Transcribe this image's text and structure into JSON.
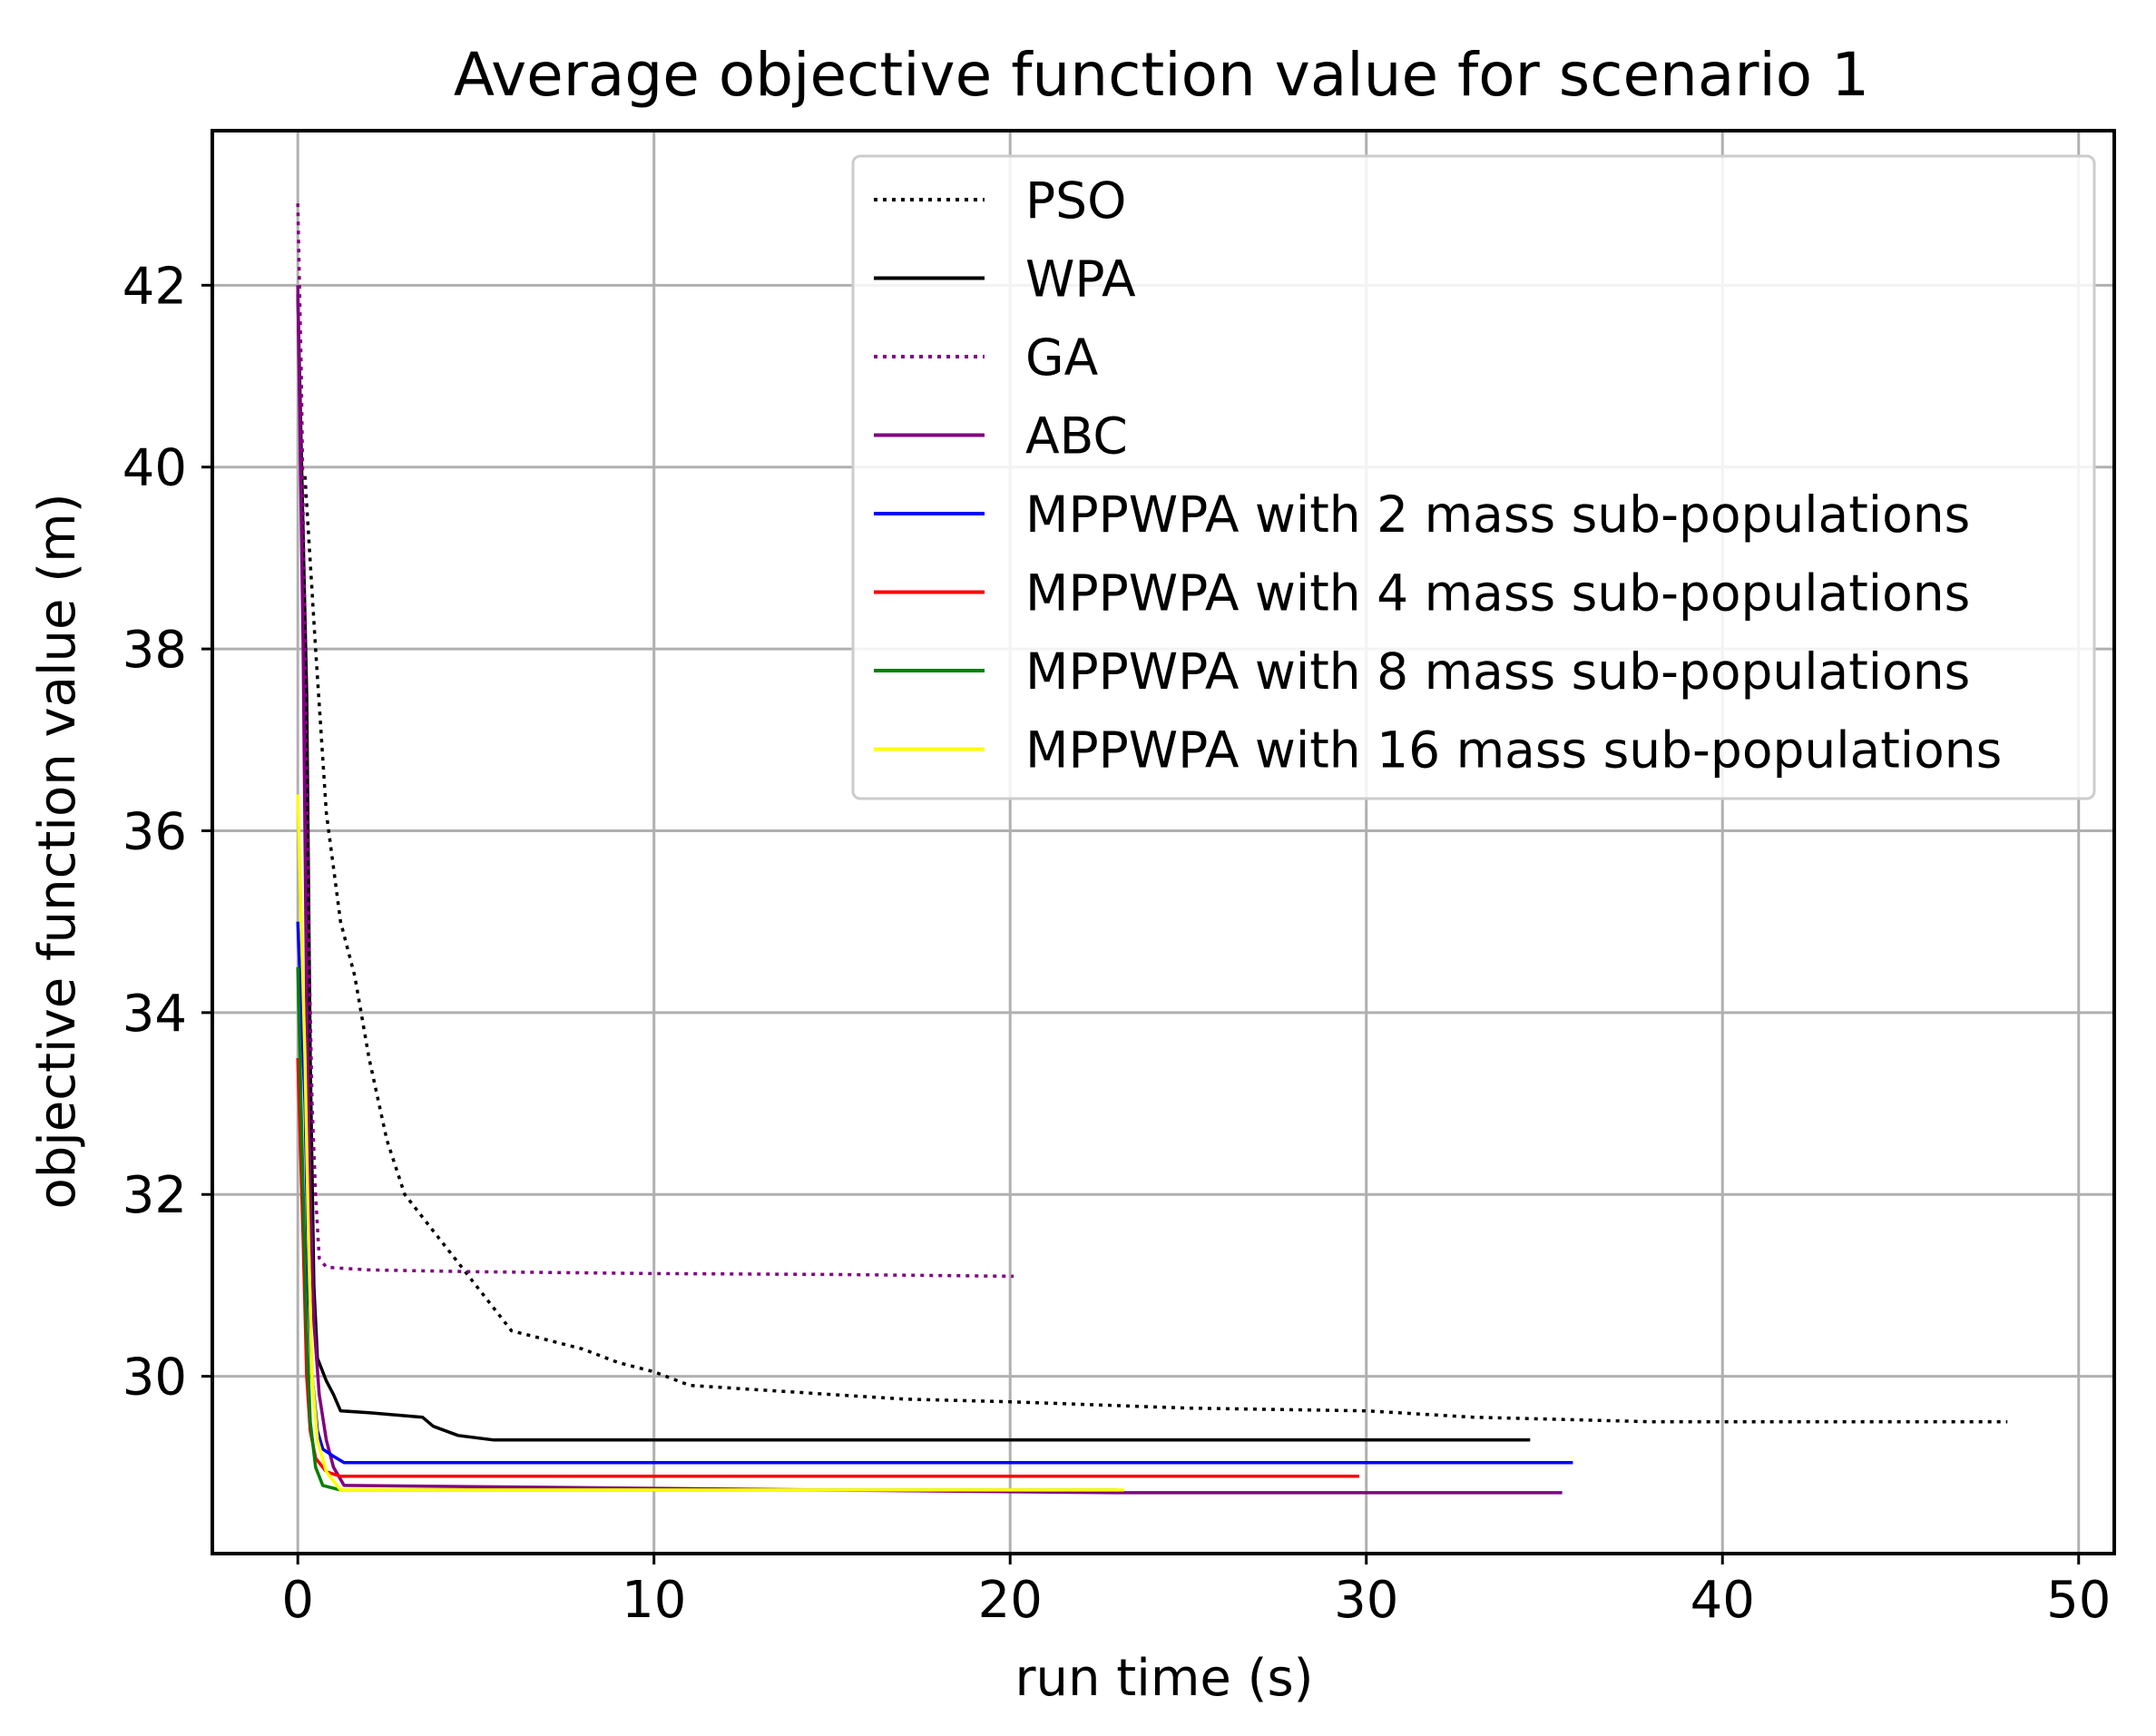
{
  "chart_data": {
    "type": "line",
    "title": "Average objective function value for scenario 1",
    "xlabel": "run time (s)",
    "ylabel": "objective function value (m)",
    "xlim": [
      -2.4,
      51.0
    ],
    "ylim": [
      28.05,
      43.7
    ],
    "grid": true,
    "legend_position": "top-right",
    "xticks": [
      0,
      10,
      20,
      30,
      40,
      50
    ],
    "yticks": [
      30,
      32,
      34,
      36,
      38,
      40,
      42
    ],
    "xtick_labels": [
      "0",
      "10",
      "20",
      "30",
      "40",
      "50"
    ],
    "ytick_labels": [
      "30",
      "32",
      "34",
      "36",
      "38",
      "40",
      "42"
    ],
    "series": [
      {
        "name": "PSO",
        "color": "#000000",
        "style": "dotted",
        "points": [
          [
            0.2,
            39.9
          ],
          [
            0.5,
            38.0
          ],
          [
            0.8,
            36.2
          ],
          [
            1.2,
            35.0
          ],
          [
            1.6,
            34.4
          ],
          [
            2.0,
            33.5
          ],
          [
            2.5,
            32.6
          ],
          [
            3.0,
            32.0
          ],
          [
            4.0,
            31.5
          ],
          [
            5.0,
            31.0
          ],
          [
            6.0,
            30.5
          ],
          [
            7.0,
            30.4
          ],
          [
            8.0,
            30.3
          ],
          [
            9.0,
            30.15
          ],
          [
            10.0,
            30.05
          ],
          [
            11.0,
            29.9
          ],
          [
            13.0,
            29.85
          ],
          [
            15.0,
            29.8
          ],
          [
            17.0,
            29.75
          ],
          [
            20.0,
            29.72
          ],
          [
            25.0,
            29.65
          ],
          [
            30.0,
            29.62
          ],
          [
            33.0,
            29.55
          ],
          [
            38.0,
            29.5
          ],
          [
            48.0,
            29.5
          ]
        ]
      },
      {
        "name": "WPA",
        "color": "#000000",
        "style": "solid",
        "points": [
          [
            0.0,
            41.9
          ],
          [
            0.25,
            37.5
          ],
          [
            0.35,
            33.5
          ],
          [
            0.45,
            31.0
          ],
          [
            0.55,
            30.2
          ],
          [
            0.8,
            29.95
          ],
          [
            1.0,
            29.8
          ],
          [
            1.2,
            29.62
          ],
          [
            2.0,
            29.6
          ],
          [
            3.5,
            29.55
          ],
          [
            3.8,
            29.45
          ],
          [
            4.5,
            29.35
          ],
          [
            5.5,
            29.3
          ],
          [
            34.6,
            29.3
          ]
        ]
      },
      {
        "name": "GA",
        "color": "#800080",
        "style": "dotted",
        "points": [
          [
            0.0,
            42.9
          ],
          [
            0.1,
            41.0
          ],
          [
            0.2,
            38.0
          ],
          [
            0.3,
            35.0
          ],
          [
            0.4,
            33.0
          ],
          [
            0.5,
            32.0
          ],
          [
            0.6,
            31.3
          ],
          [
            0.8,
            31.2
          ],
          [
            2.0,
            31.17
          ],
          [
            5.0,
            31.15
          ],
          [
            10.0,
            31.13
          ],
          [
            15.0,
            31.12
          ],
          [
            20.1,
            31.1
          ]
        ]
      },
      {
        "name": "ABC",
        "color": "#800080",
        "style": "solid",
        "points": [
          [
            0.0,
            42.0
          ],
          [
            0.15,
            38.0
          ],
          [
            0.25,
            34.0
          ],
          [
            0.35,
            32.0
          ],
          [
            0.45,
            30.6
          ],
          [
            0.6,
            29.8
          ],
          [
            0.8,
            29.3
          ],
          [
            1.0,
            29.0
          ],
          [
            1.3,
            28.8
          ],
          [
            23.0,
            28.72
          ],
          [
            35.5,
            28.72
          ]
        ]
      },
      {
        "name": "MPPWPA with 2 mass sub-populations",
        "color": "#0000ff",
        "style": "solid",
        "points": [
          [
            0.0,
            35.0
          ],
          [
            0.2,
            33.0
          ],
          [
            0.3,
            31.0
          ],
          [
            0.4,
            30.0
          ],
          [
            0.55,
            29.4
          ],
          [
            0.7,
            29.2
          ],
          [
            1.0,
            29.12
          ],
          [
            1.3,
            29.05
          ],
          [
            35.8,
            29.05
          ]
        ]
      },
      {
        "name": "MPPWPA with 4 mass sub-populations",
        "color": "#ff0000",
        "style": "solid",
        "points": [
          [
            0.0,
            33.5
          ],
          [
            0.15,
            31.5
          ],
          [
            0.25,
            30.0
          ],
          [
            0.35,
            29.4
          ],
          [
            0.5,
            29.1
          ],
          [
            0.8,
            28.95
          ],
          [
            1.2,
            28.9
          ],
          [
            29.8,
            28.9
          ]
        ]
      },
      {
        "name": "MPPWPA with 8 mass sub-populations",
        "color": "#008000",
        "style": "solid",
        "points": [
          [
            0.0,
            34.5
          ],
          [
            0.15,
            32.0
          ],
          [
            0.25,
            30.5
          ],
          [
            0.35,
            29.5
          ],
          [
            0.5,
            29.0
          ],
          [
            0.7,
            28.8
          ],
          [
            1.2,
            28.75
          ],
          [
            23.0,
            28.75
          ]
        ]
      },
      {
        "name": "MPPWPA with 16 mass sub-populations",
        "color": "#ffff00",
        "style": "solid",
        "points": [
          [
            0.0,
            36.4
          ],
          [
            0.2,
            33.5
          ],
          [
            0.3,
            31.5
          ],
          [
            0.4,
            30.0
          ],
          [
            0.55,
            29.3
          ],
          [
            0.8,
            28.95
          ],
          [
            1.2,
            28.75
          ],
          [
            23.2,
            28.75
          ]
        ]
      }
    ]
  }
}
